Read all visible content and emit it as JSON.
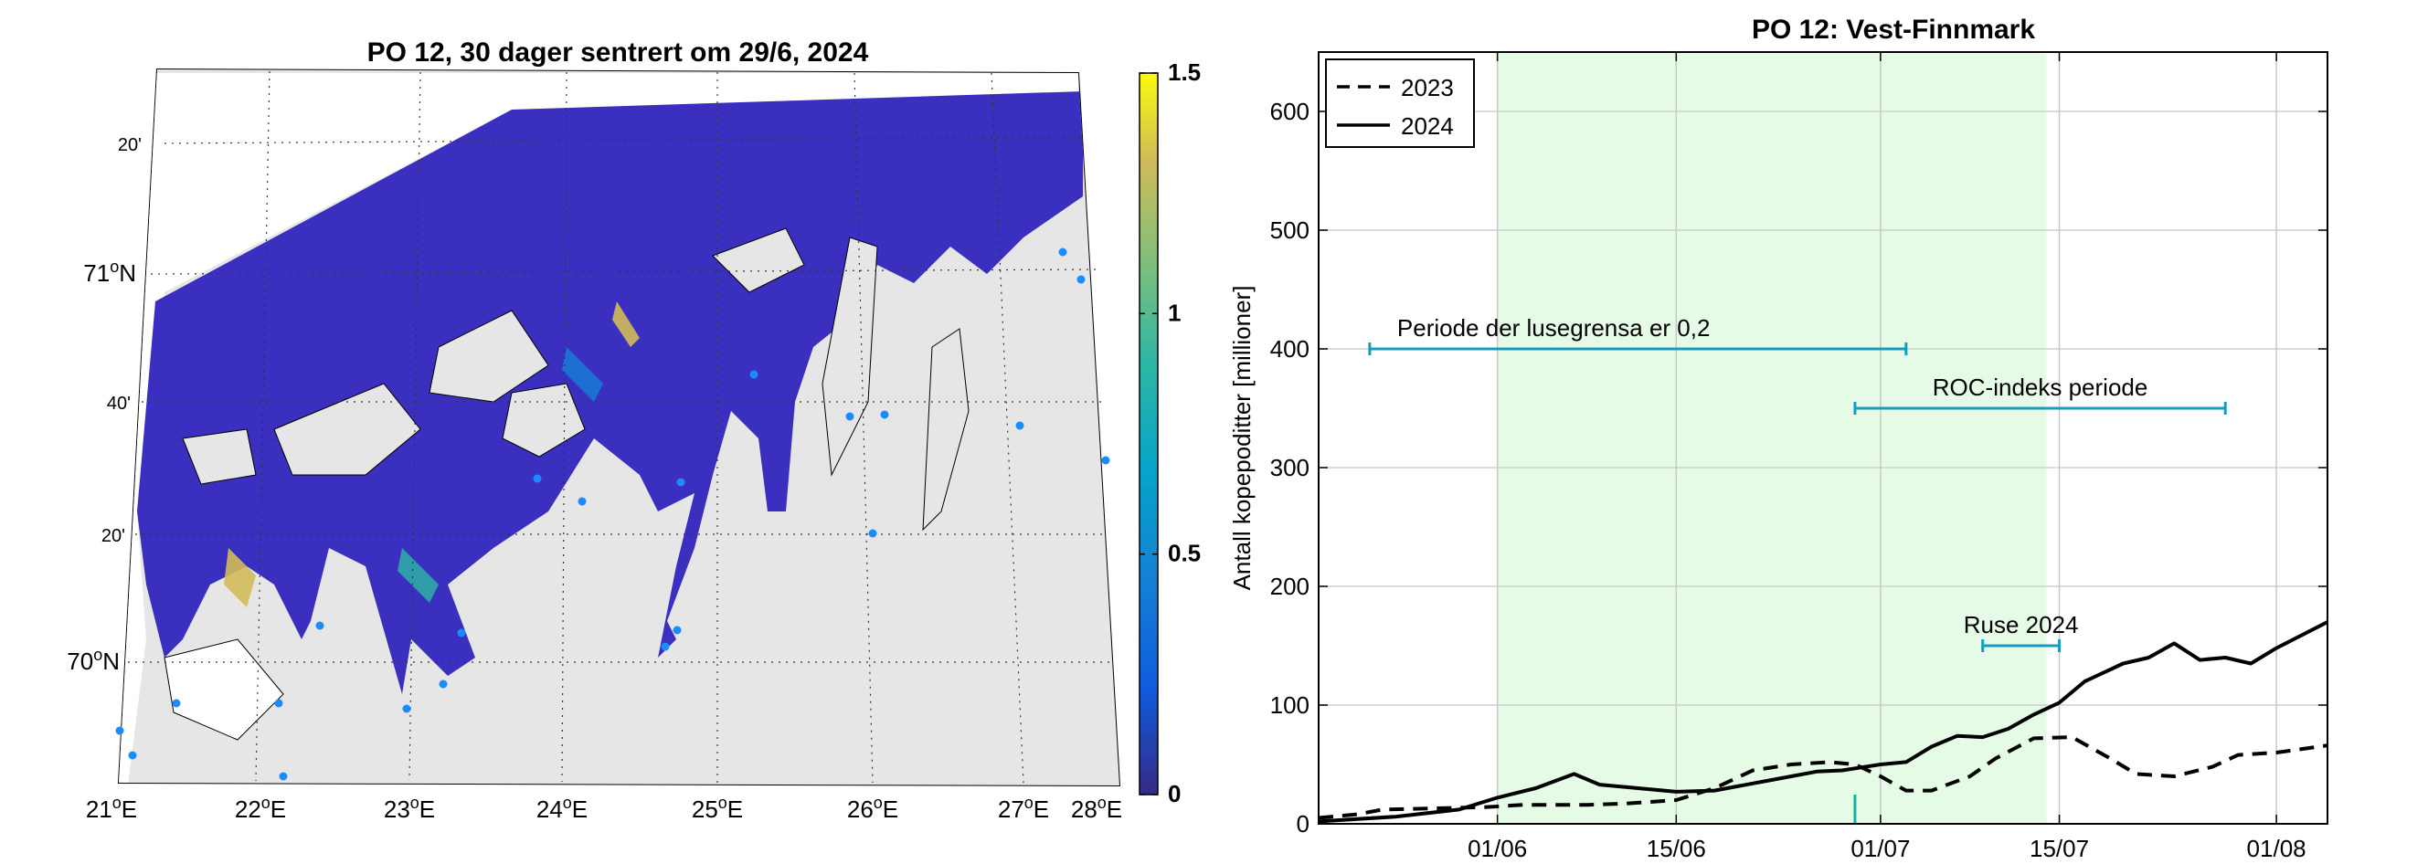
{
  "chart_data": [
    {
      "type": "heatmap",
      "title": "PO 12, 30 dager sentrert om 29/6, 2024",
      "lon_ticks": [
        {
          "deg": "21",
          "suffix": "E"
        },
        {
          "deg": "22",
          "suffix": "E"
        },
        {
          "deg": "23",
          "suffix": "E"
        },
        {
          "deg": "24",
          "suffix": "E"
        },
        {
          "deg": "25",
          "suffix": "E"
        },
        {
          "deg": "26",
          "suffix": "E"
        },
        {
          "deg": "27",
          "suffix": "E"
        },
        {
          "deg": "28",
          "suffix": "E"
        }
      ],
      "lat_ticks": [
        {
          "label": "20'"
        },
        {
          "deg": "71",
          "suffix": "N"
        },
        {
          "label": "40'"
        },
        {
          "label": "20'"
        },
        {
          "deg": "70",
          "suffix": "N"
        }
      ],
      "colorbar": {
        "colormap": "parula",
        "range": [
          0,
          1.5
        ],
        "ticks": [
          "1.5",
          "1",
          "0.5",
          "0"
        ]
      },
      "colors": {
        "ocean": "#3a2fbe",
        "land": "#e6e6e6",
        "coast": "#000000",
        "stations": "#1a8cff"
      }
    },
    {
      "type": "line",
      "title": "PO 12: Vest-Finnmark",
      "ylabel": "Antall kopepoditter [millioner]",
      "ylim": [
        0,
        650
      ],
      "yticks": [
        "0",
        "100",
        "200",
        "300",
        "400",
        "500",
        "600"
      ],
      "xlim": [
        "2024-05-18",
        "2024-08-05"
      ],
      "xticks": [
        {
          "date": "2024-06-01",
          "label": "01/06"
        },
        {
          "date": "2024-06-15",
          "label": "15/06"
        },
        {
          "date": "2024-07-01",
          "label": "01/07"
        },
        {
          "date": "2024-07-15",
          "label": "15/07"
        },
        {
          "date": "2024-08-01",
          "label": "01/08"
        }
      ],
      "grid": true,
      "legend_position": "top-left",
      "shaded_period": {
        "start": "2024-06-01",
        "end": "2024-07-14",
        "color": "#e6fbe6"
      },
      "marker": {
        "date": "2024-06-29",
        "color": "#1ab0a0"
      },
      "series": [
        {
          "name": "2023",
          "style": "dashed",
          "points": [
            [
              "2024-05-18",
              5
            ],
            [
              "2024-05-21",
              8
            ],
            [
              "2024-05-23",
              12
            ],
            [
              "2024-05-27",
              13
            ],
            [
              "2024-05-31",
              14
            ],
            [
              "2024-06-03",
              16
            ],
            [
              "2024-06-08",
              16
            ],
            [
              "2024-06-11",
              17
            ],
            [
              "2024-06-15",
              20
            ],
            [
              "2024-06-18",
              30
            ],
            [
              "2024-06-21",
              45
            ],
            [
              "2024-06-24",
              50
            ],
            [
              "2024-06-27",
              52
            ],
            [
              "2024-06-29",
              50
            ],
            [
              "2024-07-01",
              40
            ],
            [
              "2024-07-03",
              28
            ],
            [
              "2024-07-05",
              28
            ],
            [
              "2024-07-08",
              40
            ],
            [
              "2024-07-10",
              55
            ],
            [
              "2024-07-13",
              72
            ],
            [
              "2024-07-16",
              73
            ],
            [
              "2024-07-19",
              55
            ],
            [
              "2024-07-21",
              42
            ],
            [
              "2024-07-24",
              40
            ],
            [
              "2024-07-27",
              48
            ],
            [
              "2024-07-29",
              58
            ],
            [
              "2024-08-01",
              60
            ],
            [
              "2024-08-05",
              66
            ]
          ]
        },
        {
          "name": "2024",
          "style": "solid",
          "points": [
            [
              "2024-05-18",
              2
            ],
            [
              "2024-05-24",
              6
            ],
            [
              "2024-05-29",
              12
            ],
            [
              "2024-06-01",
              22
            ],
            [
              "2024-06-04",
              30
            ],
            [
              "2024-06-06",
              38
            ],
            [
              "2024-06-07",
              42
            ],
            [
              "2024-06-09",
              33
            ],
            [
              "2024-06-12",
              30
            ],
            [
              "2024-06-15",
              27
            ],
            [
              "2024-06-18",
              28
            ],
            [
              "2024-06-20",
              32
            ],
            [
              "2024-06-23",
              38
            ],
            [
              "2024-06-26",
              44
            ],
            [
              "2024-06-28",
              45
            ],
            [
              "2024-07-01",
              50
            ],
            [
              "2024-07-03",
              52
            ],
            [
              "2024-07-05",
              65
            ],
            [
              "2024-07-07",
              74
            ],
            [
              "2024-07-09",
              73
            ],
            [
              "2024-07-11",
              80
            ],
            [
              "2024-07-13",
              92
            ],
            [
              "2024-07-15",
              102
            ],
            [
              "2024-07-17",
              120
            ],
            [
              "2024-07-20",
              135
            ],
            [
              "2024-07-22",
              140
            ],
            [
              "2024-07-24",
              152
            ],
            [
              "2024-07-26",
              138
            ],
            [
              "2024-07-28",
              140
            ],
            [
              "2024-07-30",
              135
            ],
            [
              "2024-08-01",
              148
            ],
            [
              "2024-08-05",
              170
            ]
          ]
        }
      ],
      "annotations": [
        {
          "text": "Periode der lusegrensa er 0,2",
          "start": "2024-05-22",
          "end": "2024-07-03",
          "y": 400,
          "color": "#1a9bbe"
        },
        {
          "text": "ROC-indeks periode",
          "start": "2024-06-29",
          "end": "2024-07-28",
          "y": 350,
          "color": "#1a9bbe"
        },
        {
          "text": "Ruse 2024",
          "start": "2024-07-09",
          "end": "2024-07-15",
          "y": 150,
          "color": "#1a9bbe"
        }
      ]
    }
  ]
}
